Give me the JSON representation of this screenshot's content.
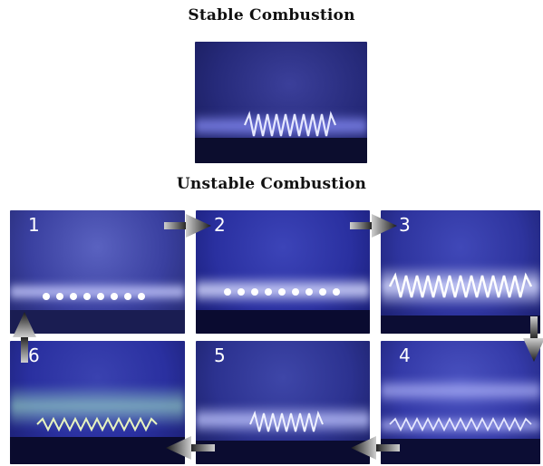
{
  "headings": {
    "stable": "Stable Combustion",
    "unstable": "Unstable Combustion"
  },
  "panels": [
    {
      "label": "1"
    },
    {
      "label": "2"
    },
    {
      "label": "3"
    },
    {
      "label": "4"
    },
    {
      "label": "5"
    },
    {
      "label": "6"
    }
  ],
  "colors": {
    "background": "#ffffff",
    "flame_blue": "#3a3fa0",
    "flame_light": "#c8ccff",
    "arrow_gray": "#8a8a8a"
  }
}
